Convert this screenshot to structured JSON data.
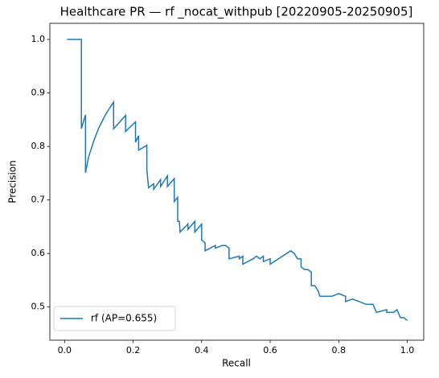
{
  "chart_data": {
    "type": "line",
    "title": "Healthcare PR — rf _nocat_withpub [20220905-20250905]",
    "xlabel": "Recall",
    "ylabel": "Precision",
    "x": [
      0.007,
      0.049,
      0.049,
      0.061,
      0.061,
      0.07,
      0.085,
      0.1,
      0.12,
      0.143,
      0.143,
      0.178,
      0.178,
      0.207,
      0.207,
      0.216,
      0.216,
      0.24,
      0.24,
      0.245,
      0.26,
      0.26,
      0.28,
      0.28,
      0.3,
      0.3,
      0.32,
      0.32,
      0.33,
      0.33,
      0.335,
      0.337,
      0.36,
      0.36,
      0.38,
      0.38,
      0.4,
      0.4,
      0.41,
      0.41,
      0.44,
      0.44,
      0.46,
      0.47,
      0.48,
      0.48,
      0.51,
      0.51,
      0.52,
      0.52,
      0.55,
      0.56,
      0.57,
      0.58,
      0.58,
      0.6,
      0.6,
      0.66,
      0.67,
      0.68,
      0.69,
      0.69,
      0.7,
      0.71,
      0.72,
      0.72,
      0.73,
      0.74,
      0.745,
      0.76,
      0.78,
      0.8,
      0.82,
      0.82,
      0.84,
      0.86,
      0.88,
      0.9,
      0.91,
      0.94,
      0.94,
      0.95,
      0.96,
      0.97,
      0.98,
      0.99,
      1.0
    ],
    "series": [
      {
        "name": "rf (AP=0.655)",
        "color": "#1f77b4",
        "values": [
          1.0,
          1.0,
          0.833,
          0.859,
          0.751,
          0.78,
          0.81,
          0.835,
          0.86,
          0.883,
          0.833,
          0.858,
          0.828,
          0.846,
          0.808,
          0.82,
          0.793,
          0.802,
          0.757,
          0.723,
          0.73,
          0.72,
          0.738,
          0.725,
          0.745,
          0.725,
          0.74,
          0.697,
          0.705,
          0.66,
          0.66,
          0.64,
          0.655,
          0.645,
          0.66,
          0.64,
          0.655,
          0.625,
          0.62,
          0.605,
          0.615,
          0.61,
          0.615,
          0.615,
          0.61,
          0.59,
          0.595,
          0.59,
          0.595,
          0.58,
          0.59,
          0.595,
          0.59,
          0.595,
          0.585,
          0.59,
          0.58,
          0.605,
          0.6,
          0.59,
          0.59,
          0.575,
          0.57,
          0.57,
          0.565,
          0.54,
          0.54,
          0.53,
          0.52,
          0.52,
          0.52,
          0.525,
          0.52,
          0.51,
          0.515,
          0.51,
          0.505,
          0.505,
          0.49,
          0.495,
          0.49,
          0.49,
          0.49,
          0.495,
          0.48,
          0.48,
          0.475
        ]
      }
    ],
    "xlim": [
      -0.043,
      1.048
    ],
    "ylim": [
      0.438,
      1.03
    ],
    "xticks": [
      {
        "value": 0,
        "label": "0.0"
      },
      0.2,
      0.4,
      0.6,
      0.8,
      {
        "value": 1,
        "label": "1.0"
      }
    ],
    "yticks": [
      0.5,
      0.6,
      0.7,
      0.8,
      0.9,
      {
        "value": 1,
        "label": "1.0"
      }
    ],
    "legend": "lower left"
  }
}
